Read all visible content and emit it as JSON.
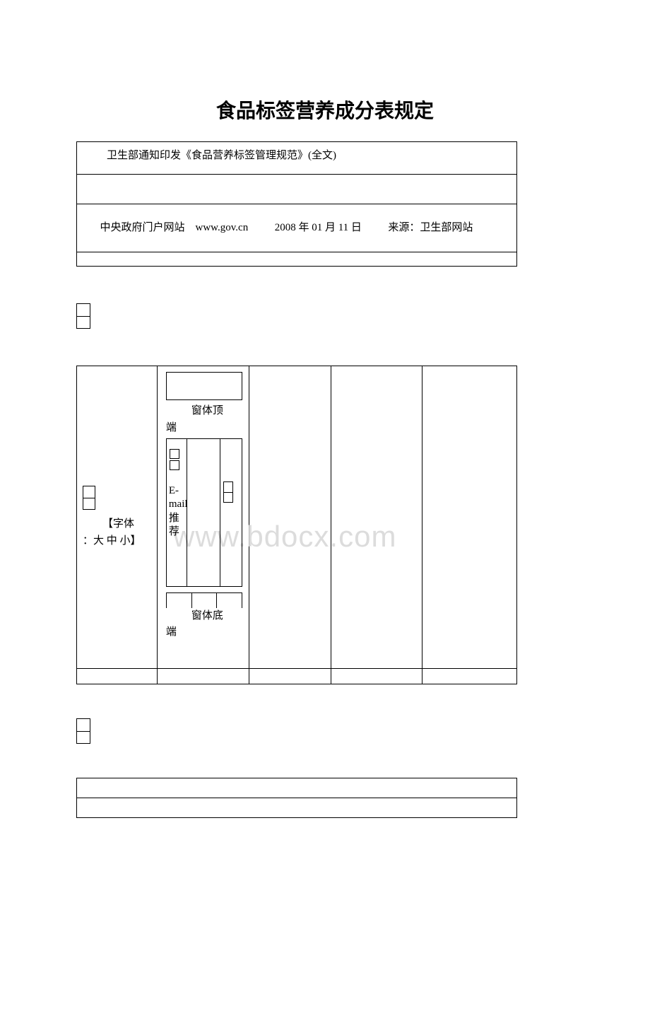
{
  "title": "食品标签营养成分表规定",
  "table1": {
    "row1_text": "卫生部通知印发《食品营养标签管理规范》(全文)",
    "row3_text": "      中央政府门户网站    www.gov.cn          2008 年 01 月 11 日          来源：卫生部网站"
  },
  "table2": {
    "font_label_line1": "【字体",
    "font_label_line2": "：大 中 小】",
    "top_label_line1": "窗体顶",
    "top_label_line2": "端",
    "email_text": "E-mail推荐",
    "bottom_label_line1": "窗体底",
    "bottom_label_line2": "端"
  },
  "watermark": "www.bdocx.com",
  "colors": {
    "text": "#000000",
    "background": "#ffffff",
    "watermark": "#dcdcdc",
    "border": "#000000"
  },
  "fonts": {
    "title_size": 28,
    "body_size": 15
  }
}
